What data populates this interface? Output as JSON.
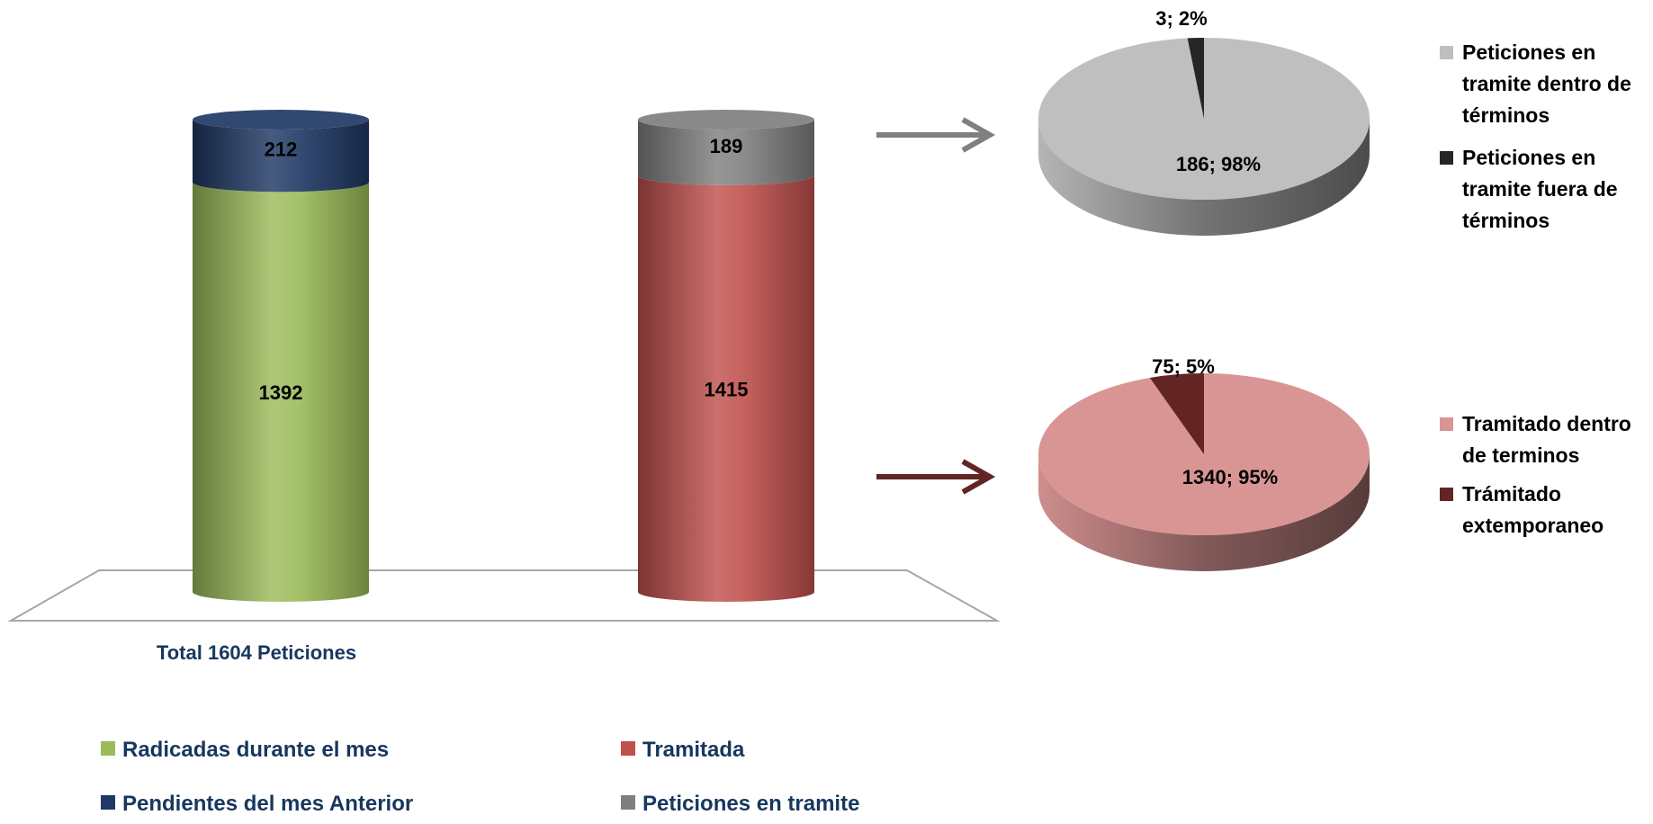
{
  "chart_data": [
    {
      "type": "bar",
      "subtype": "stacked-cylinder",
      "xlabel": "Total 1604 Peticiones",
      "stacks": [
        {
          "segments": [
            {
              "name": "Radicadas durante el mes",
              "value": 1392,
              "color": "#9bbb59"
            },
            {
              "name": "Pendientes del mes Anterior",
              "value": 212,
              "color": "#1f3864"
            }
          ]
        },
        {
          "segments": [
            {
              "name": "Tramitada",
              "value": 1415,
              "color": "#c0504d"
            },
            {
              "name": "Peticiones en tramite",
              "value": 189,
              "color": "#7f7f7f"
            }
          ]
        }
      ],
      "legend": {
        "placement": "bottom",
        "items": [
          {
            "label": "Radicadas durante el mes",
            "color": "#9bbb59"
          },
          {
            "label": "Tramitada",
            "color": "#c0504d"
          },
          {
            "label": "Pendientes del mes Anterior",
            "color": "#1f3864"
          },
          {
            "label": "Peticiones en tramite",
            "color": "#7f7f7f"
          }
        ]
      }
    },
    {
      "type": "pie",
      "style": "3d",
      "slices": [
        {
          "name": "Peticiones en tramite dentro de términos",
          "value": 186,
          "percent": 98,
          "label": "186; 98%",
          "color": "#bfbfbf"
        },
        {
          "name": "Peticiones en tramite fuera de términos",
          "value": 3,
          "percent": 2,
          "label": "3; 2%",
          "color": "#262626"
        }
      ],
      "legend": {
        "placement": "right",
        "items": [
          {
            "lines": [
              "Peticiones en",
              "tramite dentro de",
              "términos"
            ],
            "color": "#bfbfbf"
          },
          {
            "lines": [
              "Peticiones en",
              "tramite fuera de",
              "términos"
            ],
            "color": "#262626"
          }
        ]
      }
    },
    {
      "type": "pie",
      "style": "3d",
      "slices": [
        {
          "name": "Tramitado dentro de terminos",
          "value": 1340,
          "percent": 95,
          "label": "1340; 95%",
          "color": "#d99594"
        },
        {
          "name": "Trámitado extemporaneo",
          "value": 75,
          "percent": 5,
          "label": "75; 5%",
          "color": "#632523"
        }
      ],
      "legend": {
        "placement": "right",
        "items": [
          {
            "lines": [
              "Tramitado dentro",
              "de terminos"
            ],
            "color": "#d99594"
          },
          {
            "lines": [
              "Trámitado",
              "extemporaneo"
            ],
            "color": "#632523"
          }
        ]
      }
    }
  ],
  "arrows": [
    {
      "name": "arrow-to-tramite-pie",
      "color": "#808080"
    },
    {
      "name": "arrow-to-tramitado-pie",
      "color": "#632523"
    }
  ],
  "text_colors": {
    "legend": "#17375e",
    "labels": "#000000"
  }
}
